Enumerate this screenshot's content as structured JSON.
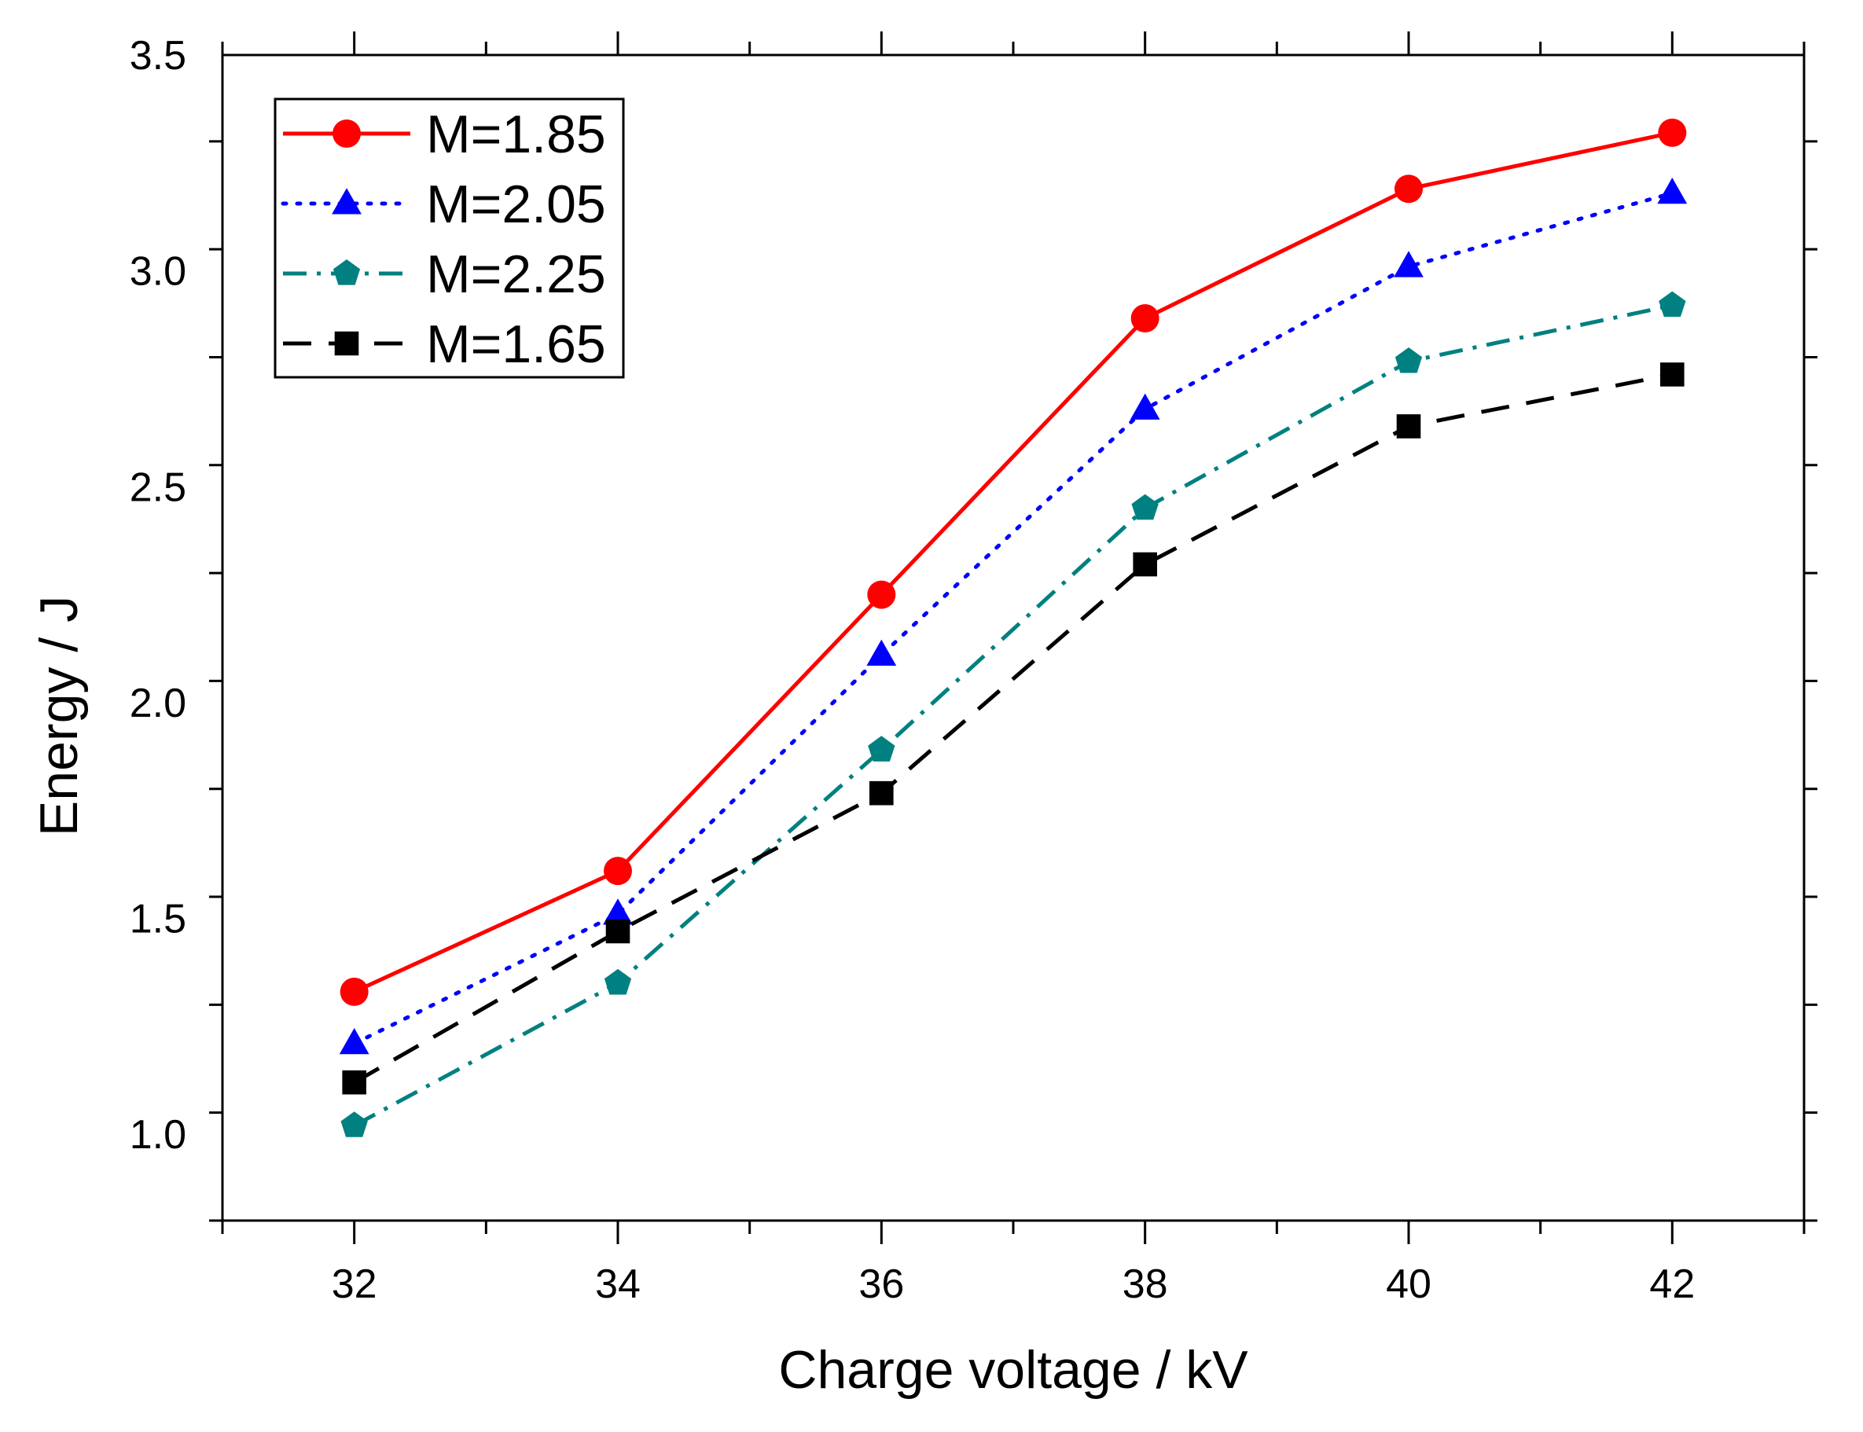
{
  "chart_data": {
    "type": "line",
    "title": "",
    "xlabel": "Charge voltage / kV",
    "ylabel": "Energy / J",
    "xlim": [
      31,
      43
    ],
    "ylim": [
      0.8,
      3.5
    ],
    "x_ticks": [
      32,
      34,
      36,
      38,
      40,
      42
    ],
    "x_tick_labels": [
      "32",
      "34",
      "36",
      "38",
      "40",
      "42"
    ],
    "y_ticks": [
      1.0,
      1.5,
      2.0,
      2.5,
      3.0,
      3.5
    ],
    "y_tick_labels": [
      "1.0",
      "1.5",
      "2.0",
      "2.5",
      "3.0",
      "3.5"
    ],
    "grid": false,
    "legend_position": "top-left",
    "x": [
      32,
      34,
      36,
      38,
      40,
      42
    ],
    "series": [
      {
        "name": "M=1.85",
        "values": [
          1.33,
          1.61,
          2.25,
          2.89,
          3.19,
          3.32
        ],
        "color": "#ff0000",
        "marker": "circle",
        "line_style": "solid"
      },
      {
        "name": "M=2.05",
        "values": [
          1.21,
          1.51,
          2.11,
          2.68,
          3.01,
          3.18
        ],
        "color": "#0000ff",
        "marker": "triangle",
        "line_style": "dotted"
      },
      {
        "name": "M=2.25",
        "values": [
          1.02,
          1.35,
          1.89,
          2.45,
          2.79,
          2.92
        ],
        "color": "#008080",
        "marker": "pentagon",
        "line_style": "dash-dot"
      },
      {
        "name": "M=1.65",
        "values": [
          1.12,
          1.47,
          1.79,
          2.32,
          2.64,
          2.76
        ],
        "color": "#000000",
        "marker": "square",
        "line_style": "dashed"
      }
    ]
  }
}
